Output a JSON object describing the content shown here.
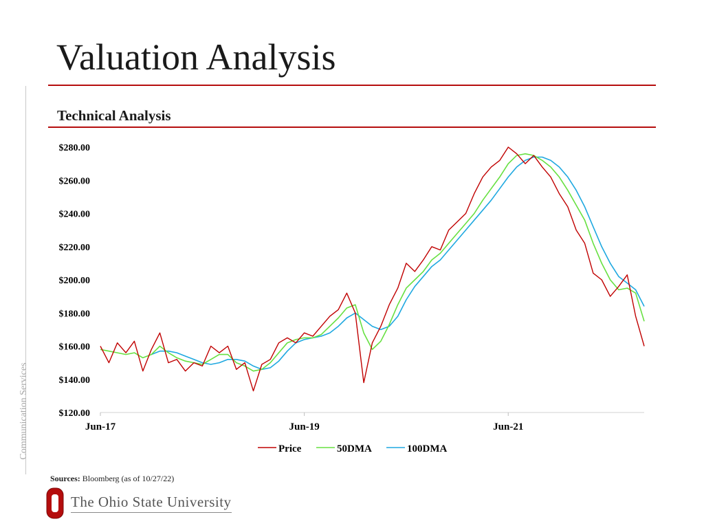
{
  "page": {
    "title": "Valuation Analysis",
    "section": "Technical Analysis",
    "side_label": "Communication Services",
    "sources_label": "Sources:",
    "sources_text": "Bloomberg (as of 10/27/22)",
    "logo_text": "The Ohio State University",
    "logo_icon": "block-o-icon"
  },
  "colors": {
    "accent": "#b50d0d",
    "price": "#c00000",
    "dma50": "#66e040",
    "dma100": "#1ea8e0"
  },
  "chart_data": {
    "type": "line",
    "title": "",
    "xlabel": "",
    "ylabel": "",
    "ylim": [
      120,
      280
    ],
    "yticks": [
      "$120.00",
      "$140.00",
      "$160.00",
      "$180.00",
      "$200.00",
      "$220.00",
      "$240.00",
      "$260.00",
      "$280.00"
    ],
    "xlim": [
      "2017-06",
      "2022-10"
    ],
    "xticks": [
      "Jun-17",
      "Jun-19",
      "Jun-21"
    ],
    "legend_position": "bottom-center",
    "grid": false,
    "series": [
      {
        "name": "Price",
        "x": [
          "2017-06",
          "2017-07",
          "2017-08",
          "2017-09",
          "2017-10",
          "2017-11",
          "2017-12",
          "2018-01",
          "2018-02",
          "2018-03",
          "2018-04",
          "2018-05",
          "2018-06",
          "2018-07",
          "2018-08",
          "2018-09",
          "2018-10",
          "2018-11",
          "2018-12",
          "2019-01",
          "2019-02",
          "2019-03",
          "2019-04",
          "2019-05",
          "2019-06",
          "2019-07",
          "2019-08",
          "2019-09",
          "2019-10",
          "2019-11",
          "2019-12",
          "2020-01",
          "2020-02",
          "2020-03",
          "2020-04",
          "2020-05",
          "2020-06",
          "2020-07",
          "2020-08",
          "2020-09",
          "2020-10",
          "2020-11",
          "2020-12",
          "2021-01",
          "2021-02",
          "2021-03",
          "2021-04",
          "2021-05",
          "2021-06",
          "2021-07",
          "2021-08",
          "2021-09",
          "2021-10",
          "2021-11",
          "2021-12",
          "2022-01",
          "2022-02",
          "2022-03",
          "2022-04",
          "2022-05",
          "2022-06",
          "2022-07",
          "2022-08",
          "2022-09",
          "2022-10"
        ],
        "values": [
          160,
          150,
          162,
          156,
          163,
          145,
          158,
          168,
          150,
          152,
          145,
          150,
          148,
          160,
          156,
          160,
          146,
          150,
          133,
          149,
          152,
          162,
          165,
          162,
          168,
          166,
          172,
          178,
          182,
          192,
          180,
          138,
          162,
          172,
          185,
          195,
          210,
          205,
          212,
          220,
          218,
          230,
          235,
          240,
          252,
          262,
          268,
          272,
          280,
          276,
          270,
          275,
          268,
          262,
          252,
          244,
          230,
          222,
          204,
          200,
          190,
          196,
          203,
          178,
          160
        ]
      },
      {
        "name": "50DMA",
        "x": [
          "2017-06",
          "2017-07",
          "2017-08",
          "2017-09",
          "2017-10",
          "2017-11",
          "2017-12",
          "2018-01",
          "2018-02",
          "2018-03",
          "2018-04",
          "2018-05",
          "2018-06",
          "2018-07",
          "2018-08",
          "2018-09",
          "2018-10",
          "2018-11",
          "2018-12",
          "2019-01",
          "2019-02",
          "2019-03",
          "2019-04",
          "2019-05",
          "2019-06",
          "2019-07",
          "2019-08",
          "2019-09",
          "2019-10",
          "2019-11",
          "2019-12",
          "2020-01",
          "2020-02",
          "2020-03",
          "2020-04",
          "2020-05",
          "2020-06",
          "2020-07",
          "2020-08",
          "2020-09",
          "2020-10",
          "2020-11",
          "2020-12",
          "2021-01",
          "2021-02",
          "2021-03",
          "2021-04",
          "2021-05",
          "2021-06",
          "2021-07",
          "2021-08",
          "2021-09",
          "2021-10",
          "2021-11",
          "2021-12",
          "2022-01",
          "2022-02",
          "2022-03",
          "2022-04",
          "2022-05",
          "2022-06",
          "2022-07",
          "2022-08",
          "2022-09",
          "2022-10"
        ],
        "values": [
          158,
          157,
          156,
          155,
          156,
          153,
          155,
          160,
          156,
          153,
          151,
          150,
          149,
          152,
          155,
          155,
          150,
          148,
          145,
          146,
          150,
          156,
          162,
          164,
          165,
          165,
          167,
          172,
          177,
          183,
          185,
          168,
          158,
          163,
          173,
          185,
          195,
          200,
          205,
          212,
          216,
          222,
          228,
          234,
          240,
          248,
          255,
          262,
          270,
          275,
          276,
          275,
          272,
          268,
          262,
          254,
          245,
          236,
          222,
          210,
          200,
          194,
          195,
          192,
          175
        ]
      },
      {
        "name": "100DMA",
        "x": [
          "2017-06",
          "2017-07",
          "2017-08",
          "2017-09",
          "2017-10",
          "2017-11",
          "2017-12",
          "2018-01",
          "2018-02",
          "2018-03",
          "2018-04",
          "2018-05",
          "2018-06",
          "2018-07",
          "2018-08",
          "2018-09",
          "2018-10",
          "2018-11",
          "2018-12",
          "2019-01",
          "2019-02",
          "2019-03",
          "2019-04",
          "2019-05",
          "2019-06",
          "2019-07",
          "2019-08",
          "2019-09",
          "2019-10",
          "2019-11",
          "2019-12",
          "2020-01",
          "2020-02",
          "2020-03",
          "2020-04",
          "2020-05",
          "2020-06",
          "2020-07",
          "2020-08",
          "2020-09",
          "2020-10",
          "2020-11",
          "2020-12",
          "2021-01",
          "2021-02",
          "2021-03",
          "2021-04",
          "2021-05",
          "2021-06",
          "2021-07",
          "2021-08",
          "2021-09",
          "2021-10",
          "2021-11",
          "2021-12",
          "2022-01",
          "2022-02",
          "2022-03",
          "2022-04",
          "2022-05",
          "2022-06",
          "2022-07",
          "2022-08",
          "2022-09",
          "2022-10"
        ],
        "values": [
          null,
          null,
          null,
          null,
          null,
          null,
          155,
          157,
          157,
          156,
          154,
          152,
          150,
          149,
          150,
          152,
          152,
          151,
          148,
          146,
          147,
          151,
          157,
          162,
          164,
          165,
          166,
          168,
          172,
          177,
          180,
          176,
          172,
          170,
          172,
          178,
          188,
          196,
          202,
          208,
          212,
          218,
          224,
          230,
          236,
          242,
          248,
          255,
          262,
          268,
          272,
          274,
          274,
          272,
          268,
          262,
          254,
          244,
          232,
          220,
          210,
          202,
          198,
          194,
          184
        ]
      }
    ]
  }
}
